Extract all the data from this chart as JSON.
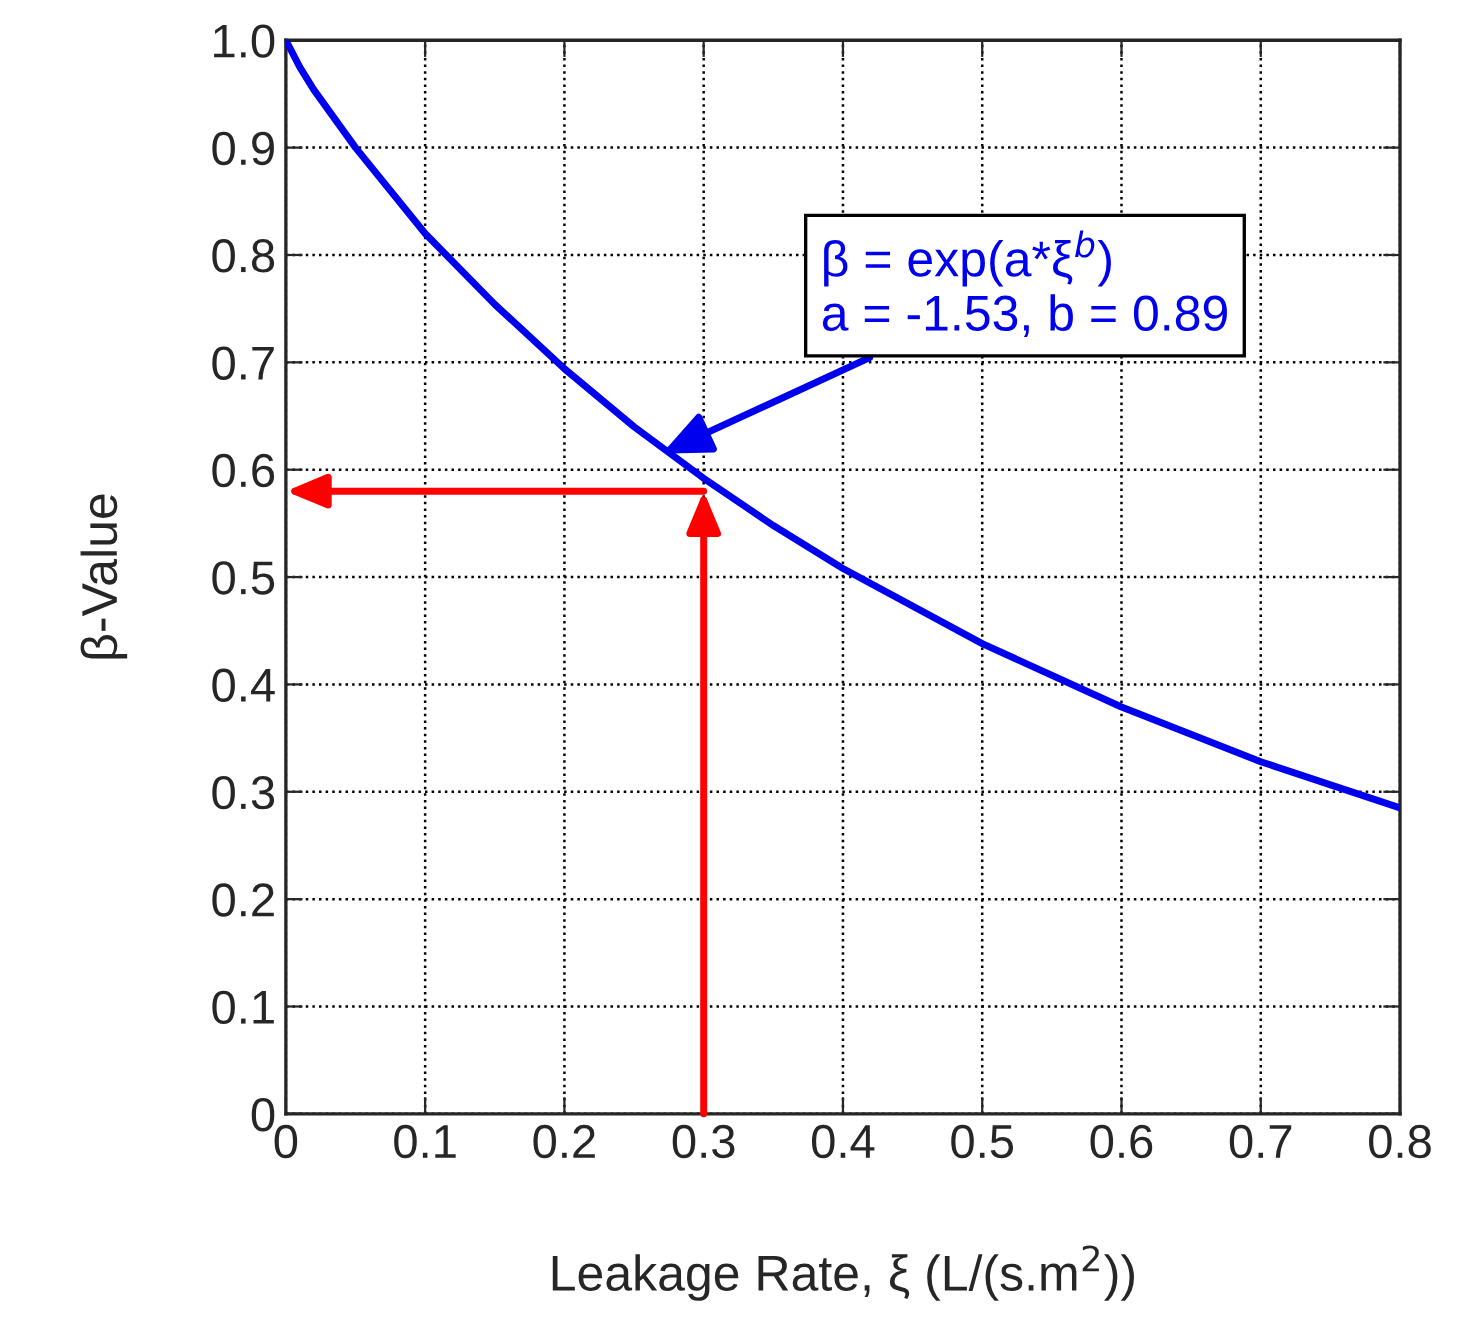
{
  "chart_data": {
    "type": "line",
    "xlabel": "Leakage Rate, ξ (L/(s.m$^{2}$))",
    "ylabel": "β-Value",
    "series": [
      {
        "color": "#0000ee",
        "x": [
          0,
          0.01,
          0.02,
          0.05,
          0.1,
          0.15,
          0.2,
          0.25,
          0.3,
          0.35,
          0.4,
          0.5,
          0.6,
          0.7,
          0.8
        ],
        "values": [
          1.0,
          0.975,
          0.954,
          0.9,
          0.82,
          0.754,
          0.694,
          0.64,
          0.592,
          0.548,
          0.508,
          0.438,
          0.379,
          0.328,
          0.285
        ]
      }
    ],
    "annotations": [
      {
        "text": "β = exp(a*ξ$^{b}$)\na = -1.53, b = 0.89",
        "x": 0.27,
        "y": 0.615
      }
    ],
    "xlim": [
      0,
      0.8
    ],
    "ylim": [
      0,
      1
    ],
    "xticks": [
      0,
      0.1,
      0.2,
      0.3,
      0.4,
      0.5,
      0.6,
      0.7,
      0.8
    ],
    "yticks": [
      0,
      0.1,
      0.2,
      0.3,
      0.4,
      0.5,
      0.6,
      0.7,
      0.8,
      0.9,
      {
        "value": 1,
        "label": "1.0"
      }
    ],
    "grid": true,
    "legend": false
  }
}
